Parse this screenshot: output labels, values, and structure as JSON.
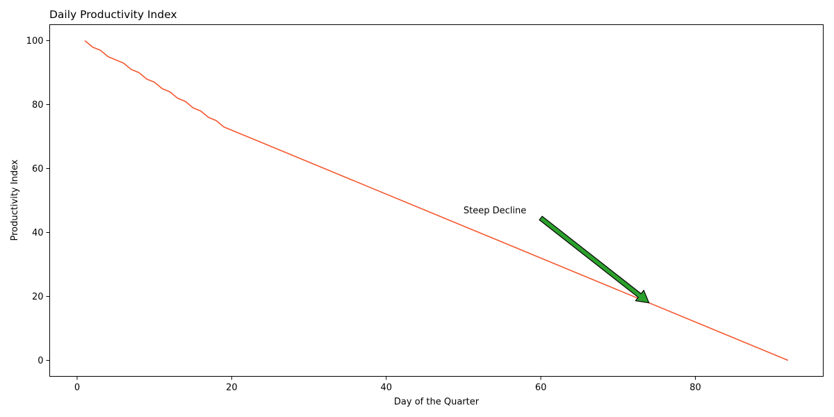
{
  "chart_data": {
    "type": "line",
    "title": "Daily Productivity Index",
    "xlabel": "Day of the Quarter",
    "ylabel": "Productivity Index",
    "xlim": [
      -3.55,
      96.55
    ],
    "ylim": [
      -5,
      105
    ],
    "xticks": [
      0,
      20,
      40,
      60,
      80
    ],
    "yticks": [
      0,
      20,
      40,
      60,
      80,
      100
    ],
    "grid": false,
    "series": [
      {
        "color": "#f4572f",
        "x": [
          1,
          2,
          3,
          4,
          5,
          6,
          7,
          8,
          9,
          10,
          11,
          12,
          13,
          14,
          15,
          16,
          17,
          18,
          19,
          92
        ],
        "y": [
          100,
          98,
          97,
          95,
          94,
          93,
          91,
          90,
          88,
          87,
          85,
          84,
          82,
          81,
          79,
          78,
          76,
          75,
          73,
          0
        ]
      }
    ],
    "annotation": {
      "text": "Steep Decline",
      "text_x": 50,
      "text_y": 46,
      "arrow_from": [
        60,
        44.5
      ],
      "arrow_to": [
        74,
        18
      ],
      "arrow_color": "#2ca02c"
    }
  }
}
